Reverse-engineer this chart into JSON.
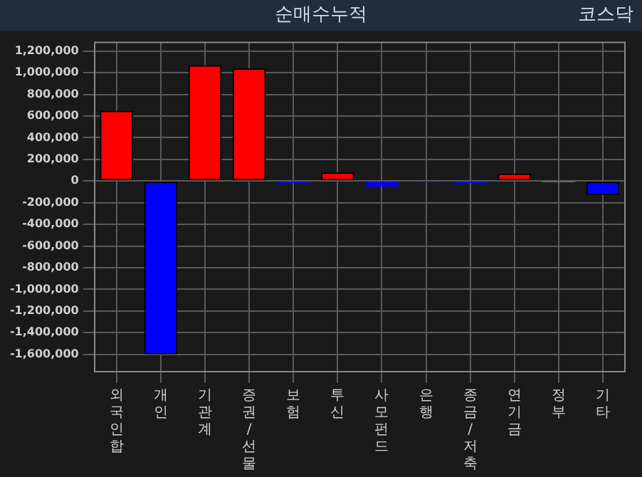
{
  "chart_data": {
    "type": "bar",
    "title": "순매수누적",
    "annotations": [
      "코스닥"
    ],
    "categories": [
      "외국인합",
      "개인",
      "기관계",
      "증권/선물",
      "보험",
      "투신",
      "사모펀드",
      "은행",
      "종금/저축",
      "연기금",
      "정부",
      "기타"
    ],
    "values": [
      650000,
      -1600000,
      1070000,
      1040000,
      -20000,
      80000,
      -50000,
      -10000,
      -20000,
      70000,
      -10000,
      -130000
    ],
    "colors": [
      "#ff0000",
      "#0000ff",
      "#ff0000",
      "#ff0000",
      "#0000ff",
      "#ff0000",
      "#0000ff",
      "#0000ff",
      "#0000ff",
      "#ff0000",
      "#c0c0c0",
      "#0000ff"
    ],
    "ylim": [
      -1760000,
      1280000
    ],
    "yticks": [
      {
        "value": -1600000,
        "label": "-1,600,000"
      },
      {
        "value": -1400000,
        "label": "-1,400,000"
      },
      {
        "value": -1200000,
        "label": "-1,200,000"
      },
      {
        "value": -1000000,
        "label": "-1,000,000"
      },
      {
        "value": -800000,
        "label": "-800,000"
      },
      {
        "value": -600000,
        "label": "-600,000"
      },
      {
        "value": -400000,
        "label": "-400,000"
      },
      {
        "value": -200000,
        "label": "-200,000"
      },
      0,
      {
        "value": 200000,
        "label": "200,000"
      },
      {
        "value": 400000,
        "label": "400,000"
      },
      {
        "value": 600000,
        "label": "600,000"
      },
      {
        "value": 800000,
        "label": "800,000"
      },
      {
        "value": 1000000,
        "label": "1,000,000"
      },
      {
        "value": 1200000,
        "label": "1,200,000"
      }
    ],
    "grid": true,
    "legend": false
  }
}
